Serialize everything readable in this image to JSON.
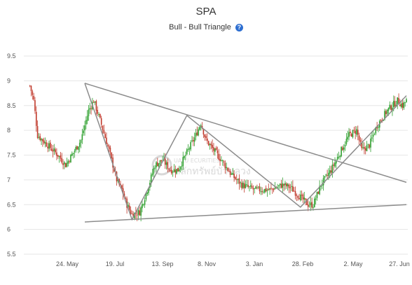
{
  "chart_data": {
    "type": "candlestick",
    "title": "SPA",
    "subtitle": "Bull - Bull Triangle",
    "help_icon": "question-circle-icon",
    "watermark": {
      "line1": "UALU    ECURITIES",
      "line2": "หลักทรัพย์บัวหลวง"
    },
    "x_tick_labels": [
      "24. May",
      "19. Jul",
      "13. Sep",
      "8. Nov",
      "3. Jan",
      "28. Feb",
      "2. May",
      "27. Jun"
    ],
    "y_tick_labels": [
      "5.5",
      "6",
      "6.5",
      "7",
      "7.5",
      "8",
      "8.5",
      "9",
      "9.5"
    ],
    "ylim": [
      5.5,
      9.5
    ],
    "grid": true,
    "colors": {
      "up": "#2ea02e",
      "down": "#c0392b",
      "pattern_line": "#8c8c8c",
      "grid": "#e6e6e6"
    },
    "price_path": [
      [
        0,
        8.9
      ],
      [
        3,
        8.6
      ],
      [
        6,
        7.9
      ],
      [
        14,
        7.7
      ],
      [
        22,
        7.5
      ],
      [
        28,
        7.3
      ],
      [
        34,
        7.55
      ],
      [
        40,
        7.8
      ],
      [
        46,
        8.4
      ],
      [
        50,
        8.6
      ],
      [
        55,
        8.2
      ],
      [
        62,
        7.6
      ],
      [
        68,
        7.0
      ],
      [
        72,
        6.8
      ],
      [
        76,
        6.5
      ],
      [
        80,
        6.3
      ],
      [
        86,
        6.35
      ],
      [
        92,
        6.8
      ],
      [
        98,
        7.3
      ],
      [
        104,
        7.4
      ],
      [
        110,
        7.2
      ],
      [
        116,
        7.2
      ],
      [
        122,
        7.5
      ],
      [
        130,
        7.9
      ],
      [
        134,
        8.15
      ],
      [
        138,
        7.8
      ],
      [
        144,
        7.6
      ],
      [
        150,
        7.4
      ],
      [
        158,
        7.1
      ],
      [
        166,
        6.9
      ],
      [
        176,
        6.8
      ],
      [
        188,
        6.8
      ],
      [
        198,
        6.9
      ],
      [
        204,
        6.85
      ],
      [
        210,
        6.7
      ],
      [
        218,
        6.5
      ],
      [
        222,
        6.5
      ],
      [
        228,
        6.9
      ],
      [
        236,
        7.2
      ],
      [
        242,
        7.5
      ],
      [
        250,
        7.9
      ],
      [
        256,
        8.0
      ],
      [
        260,
        7.6
      ],
      [
        266,
        7.7
      ],
      [
        272,
        8.1
      ],
      [
        280,
        8.4
      ],
      [
        288,
        8.6
      ],
      [
        292,
        8.5
      ],
      [
        295,
        8.6
      ]
    ],
    "pattern_lines": [
      {
        "name": "upper-trendline",
        "points": [
          [
            43,
            8.95
          ],
          [
            295,
            6.95
          ]
        ]
      },
      {
        "name": "lower-trendline",
        "points": [
          [
            43,
            6.15
          ],
          [
            295,
            6.5
          ]
        ]
      },
      {
        "name": "zigzag",
        "points": [
          [
            43,
            8.95
          ],
          [
            80,
            6.2
          ],
          [
            123,
            8.3
          ],
          [
            212,
            6.45
          ],
          [
            295,
            8.7
          ]
        ]
      }
    ]
  }
}
